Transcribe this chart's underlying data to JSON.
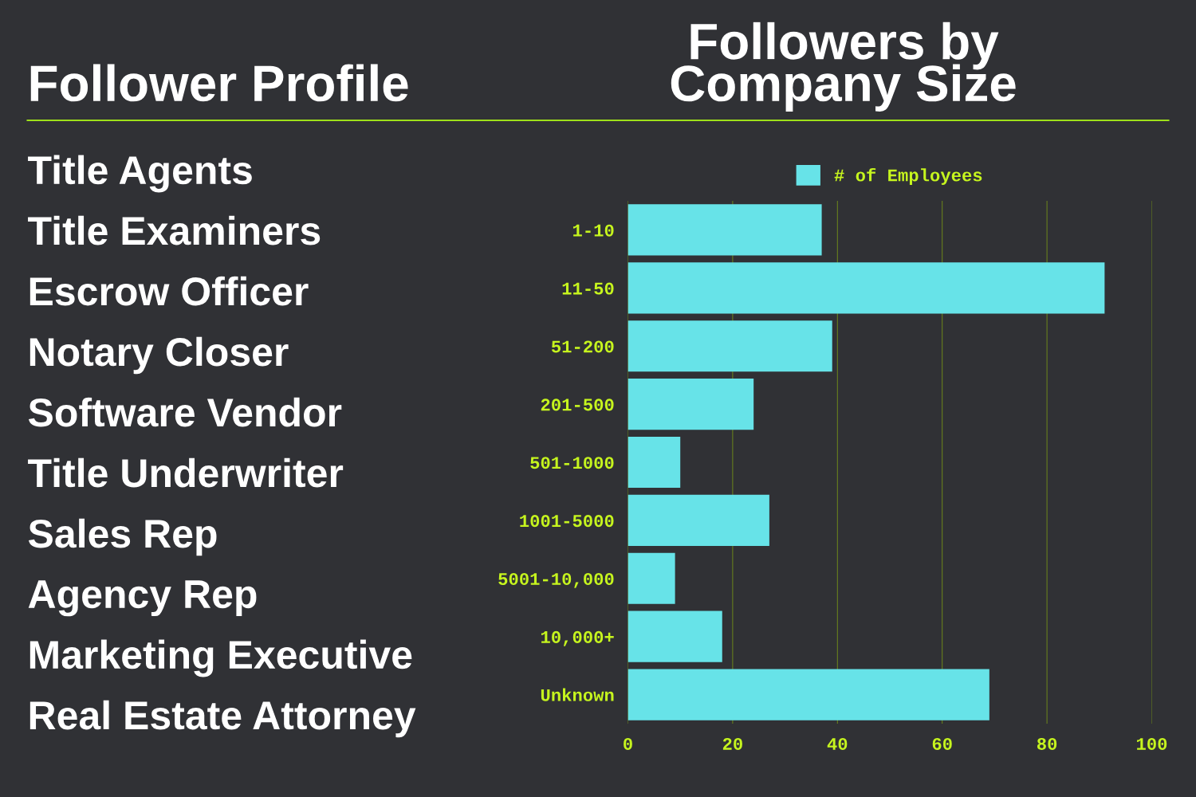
{
  "chart_data": [
    {
      "type": "other",
      "title": "Follower Profile",
      "annotations": [
        "Title Agents",
        "Title Examiners",
        "Escrow Officer",
        "Notary Closer",
        "Software Vendor",
        "Title Underwriter",
        "Sales Rep",
        "Agency Rep",
        "Marketing Executive",
        "Real Estate Attorney"
      ]
    },
    {
      "type": "bar",
      "title": "Followers by\nCompany Size",
      "orientation": "horizontal",
      "categories": [
        "1-10",
        "11-50",
        "51-200",
        "201-500",
        "501-1000",
        "1001-5000",
        "5001-10,000",
        "10,000+",
        "Unknown"
      ],
      "series": [
        {
          "name": "# of Employees",
          "color": "#67e3e8",
          "values": [
            37,
            91,
            39,
            24,
            10,
            27,
            9,
            18,
            69
          ]
        }
      ],
      "xlim": [
        0,
        100
      ],
      "xticks": [
        0,
        20,
        40,
        60,
        80,
        100
      ],
      "grid": "x",
      "legend": "top"
    }
  ]
}
